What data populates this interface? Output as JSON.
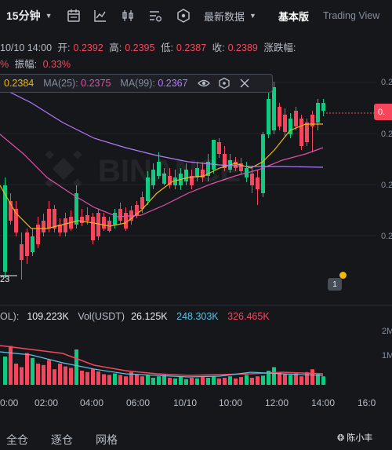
{
  "toolbar": {
    "interval": "15分钟",
    "latest_data": "最新数据",
    "basic_version": "基本版",
    "trading_view": "Trading View"
  },
  "ohlc": {
    "datetime": "10/10 14:00",
    "open_label": "开:",
    "open": "0.2392",
    "high_label": "高:",
    "high": "0.2395",
    "low_label": "低:",
    "low": "0.2387",
    "close_label": "收:",
    "close": "0.2389",
    "change_label": "涨跌幅:",
    "change_pct_tail": "%",
    "amplitude_label": "振幅:",
    "amplitude": "0.33%"
  },
  "ma": {
    "ma7_value": "0.2384",
    "ma25_label": "MA(25):",
    "ma25_value": "0.2375",
    "ma99_label": "MA(99):",
    "ma99_value": "0.2367"
  },
  "price_axis": {
    "current_tag": "0.",
    "ticks": [
      "0.2",
      "0.2",
      "0.2",
      "0.2",
      "0.2"
    ]
  },
  "min_label": "23",
  "indicator_badge": "1",
  "volume": {
    "vol_label": "OL):",
    "vol_value": "109.223K",
    "usdt_label": "Vol(USDT)",
    "usdt_value": "26.125K",
    "ma_cyan": "248.303K",
    "ma_pink": "326.465K",
    "axis_top": "2M",
    "axis_mid": "1M"
  },
  "time_axis": [
    "0:00",
    "02:00",
    "04:00",
    "06:00",
    "10/10",
    "10:00",
    "12:00",
    "14:00",
    "16:0"
  ],
  "bottom_tabs": {
    "all": "全仓",
    "isolated": "逐仓",
    "grid": "网格"
  },
  "credit": "陈小丰",
  "watermark_text": "BINANCE",
  "colors": {
    "up": "#0ecb81",
    "down": "#f6465d",
    "ma7": "#f0b90b",
    "ma25": "#e052a8",
    "ma99": "#b07bfe"
  }
}
